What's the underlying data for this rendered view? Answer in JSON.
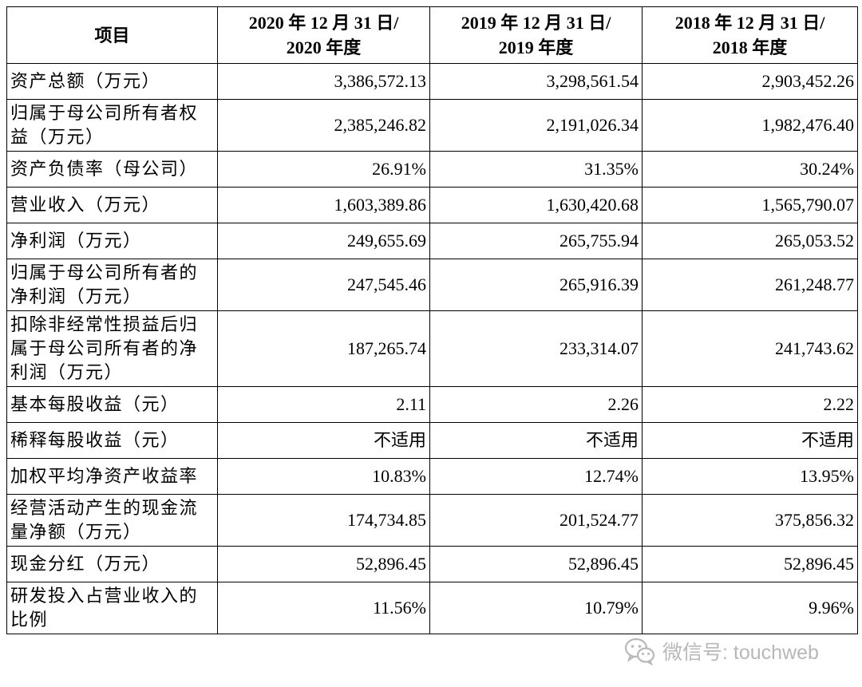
{
  "header": {
    "item": "项目",
    "col2020": [
      "2020 年 12 月 31 日/",
      "2020 年度"
    ],
    "col2019": [
      "2019 年 12 月 31 日/",
      "2019 年度"
    ],
    "col2018": [
      "2018 年 12 月 31 日/",
      "2018 年度"
    ]
  },
  "rows": [
    {
      "label": [
        "资产总额（万元）"
      ],
      "v2020": "3,386,572.13",
      "v2019": "3,298,561.54",
      "v2018": "2,903,452.26",
      "h": "h1"
    },
    {
      "label": [
        "归属于母公司所有者权",
        "益（万元）"
      ],
      "v2020": "2,385,246.82",
      "v2019": "2,191,026.34",
      "v2018": "1,982,476.40",
      "h": "h2"
    },
    {
      "label": [
        "资产负债率（母公司）"
      ],
      "v2020": "26.91%",
      "v2019": "31.35%",
      "v2018": "30.24%",
      "h": "h1"
    },
    {
      "label": [
        "营业收入（万元）"
      ],
      "v2020": "1,603,389.86",
      "v2019": "1,630,420.68",
      "v2018": "1,565,790.07",
      "h": "h1"
    },
    {
      "label": [
        "净利润（万元）"
      ],
      "v2020": "249,655.69",
      "v2019": "265,755.94",
      "v2018": "265,053.52",
      "h": "h1"
    },
    {
      "label": [
        "归属于母公司所有者的",
        "净利润（万元）"
      ],
      "v2020": "247,545.46",
      "v2019": "265,916.39",
      "v2018": "261,248.77",
      "h": "h2"
    },
    {
      "label": [
        "扣除非经常性损益后归",
        "属于母公司所有者的净",
        "利润（万元）"
      ],
      "v2020": "187,265.74",
      "v2019": "233,314.07",
      "v2018": "241,743.62",
      "h": "h3"
    },
    {
      "label": [
        "基本每股收益（元）"
      ],
      "v2020": "2.11",
      "v2019": "2.26",
      "v2018": "2.22",
      "h": "h1"
    },
    {
      "label": [
        "稀释每股收益（元）"
      ],
      "v2020": "不适用",
      "v2019": "不适用",
      "v2018": "不适用",
      "h": "h1"
    },
    {
      "label": [
        "加权平均净资产收益率"
      ],
      "v2020": "10.83%",
      "v2019": "12.74%",
      "v2018": "13.95%",
      "h": "h1"
    },
    {
      "label": [
        "经营活动产生的现金流",
        "量净额（万元）"
      ],
      "v2020": "174,734.85",
      "v2019": "201,524.77",
      "v2018": "375,856.32",
      "h": "h2"
    },
    {
      "label": [
        "现金分红（万元）"
      ],
      "v2020": "52,896.45",
      "v2019": "52,896.45",
      "v2018": "52,896.45",
      "h": "h1"
    },
    {
      "label": [
        "研发投入占营业收入的",
        "比例"
      ],
      "v2020": "11.56%",
      "v2019": "10.79%",
      "v2018": "9.96%",
      "h": "h2"
    }
  ],
  "watermark": {
    "text": "微信号: touchweb",
    "icon": "wechat-icon",
    "color": "#b8b8b8"
  }
}
